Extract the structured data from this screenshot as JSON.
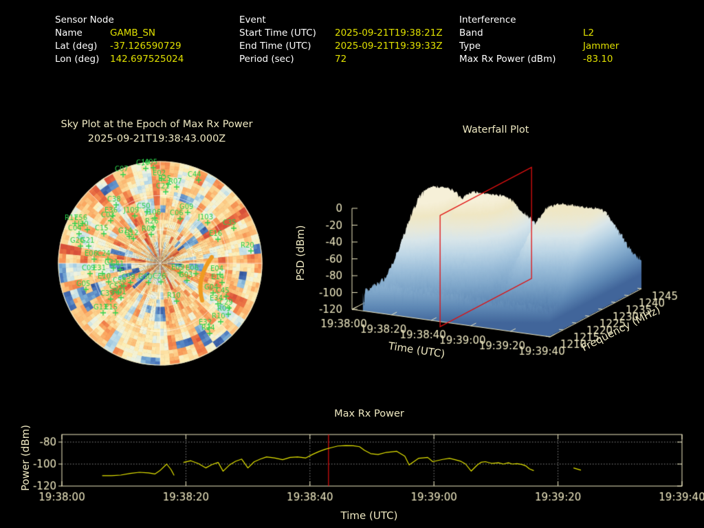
{
  "colors": {
    "background": "#000000",
    "label_white": "#ffffff",
    "value_yellow": "#e0e000",
    "cream": "#efe9c2",
    "grid_gray": "#909090",
    "green": "#2bd14b",
    "red": "#e01010",
    "line_yellow": "#e6e600",
    "orange": "#ef9b20"
  },
  "header": {
    "sensor": {
      "title": "Sensor Node",
      "rows": [
        {
          "label": "Name",
          "value": "GAMB_SN"
        },
        {
          "label": "Lat (deg)",
          "value": "-37.126590729"
        },
        {
          "label": "Lon (deg)",
          "value": "142.697525024"
        }
      ]
    },
    "event": {
      "title": "Event",
      "rows": [
        {
          "label": "Start Time (UTC)",
          "value": "2025-09-21T19:38:21Z"
        },
        {
          "label": "End Time (UTC)",
          "value": "2025-09-21T19:39:33Z"
        },
        {
          "label": "Period (sec)",
          "value": "72"
        }
      ]
    },
    "interference": {
      "title": "Interference",
      "rows": [
        {
          "label": "Band",
          "value": "L2"
        },
        {
          "label": "Type",
          "value": "Jammer"
        },
        {
          "label": "Max Rx Power (dBm)",
          "value": "-83.10"
        }
      ]
    }
  },
  "chart_data": [
    {
      "type": "heatmap",
      "subtype": "polar-sky-plot",
      "title": "Sky Plot at the Epoch of Max Rx Power",
      "subtitle": "2025-09-21T19:38:43.000Z",
      "palette": "red-yellow-blue interference intensity, mostly orange with scattered blue cells",
      "rings": 3,
      "spokes": 8,
      "marker_color": "#2bd14b",
      "track_color": "#ef9b20",
      "satellites": [
        [
          "C07",
          167,
          240
        ],
        [
          "C10",
          198,
          231
        ],
        [
          "J405",
          207,
          230
        ],
        [
          "E02",
          222,
          246
        ],
        [
          "E25",
          230,
          254
        ],
        [
          "R07",
          245,
          258
        ],
        [
          "C21",
          227,
          265
        ],
        [
          "C44",
          273,
          248
        ],
        [
          "C38",
          156,
          284
        ],
        [
          "C50",
          199,
          294
        ],
        [
          "G09",
          261,
          295
        ],
        [
          "J103",
          288,
          310
        ],
        [
          "C35",
          324,
          318
        ],
        [
          "E16",
          304,
          334
        ],
        [
          "R20",
          350,
          351
        ],
        [
          "E36",
          152,
          300
        ],
        [
          "C03",
          147,
          307
        ],
        [
          "J109",
          180,
          300
        ],
        [
          "J106",
          212,
          303
        ],
        [
          "C06",
          247,
          304
        ],
        [
          "R26",
          211,
          316
        ],
        [
          "R08",
          206,
          327
        ],
        [
          "G14",
          172,
          330
        ],
        [
          "G12",
          181,
          333
        ],
        [
          "R17",
          94,
          311
        ],
        [
          "E56",
          108,
          311
        ],
        [
          "J20",
          113,
          320
        ],
        [
          "C04",
          99,
          326
        ],
        [
          "C15",
          138,
          326
        ],
        [
          "G20",
          102,
          344
        ],
        [
          "G21",
          117,
          344
        ],
        [
          "E06",
          123,
          363
        ],
        [
          "C24",
          141,
          363
        ],
        [
          "G11",
          152,
          376
        ],
        [
          "G41",
          160,
          378
        ],
        [
          "C09",
          119,
          384
        ],
        [
          "E31",
          135,
          384
        ],
        [
          "E10",
          142,
          396
        ],
        [
          "C59",
          177,
          397
        ],
        [
          "G30",
          201,
          397
        ],
        [
          "C26",
          222,
          396
        ],
        [
          "G05",
          111,
          407
        ],
        [
          "C58",
          164,
          402
        ],
        [
          "C53",
          159,
          411
        ],
        [
          "C33",
          146,
          421
        ],
        [
          "R01",
          164,
          419
        ],
        [
          "G13",
          136,
          441
        ],
        [
          "E15",
          152,
          441
        ],
        [
          "E09",
          249,
          383
        ],
        [
          "E06",
          270,
          384
        ],
        [
          "G03",
          260,
          394
        ],
        [
          "E04",
          306,
          385
        ],
        [
          "E14",
          307,
          397
        ],
        [
          "G04",
          297,
          412
        ],
        [
          "C45",
          314,
          417
        ],
        [
          "E34",
          305,
          428
        ],
        [
          "C29",
          319,
          434
        ],
        [
          "R09",
          316,
          443
        ],
        [
          "R10",
          308,
          454
        ],
        [
          "E32",
          289,
          463
        ],
        [
          "R24",
          293,
          471
        ],
        [
          "R10",
          243,
          424
        ]
      ]
    },
    {
      "type": "area",
      "subtype": "3d-waterfall-surface",
      "title": "Waterfall Plot",
      "xlabel": "Time (UTC)",
      "ylabel": "Frequency (MHz)",
      "zlabel": "PSD (dBm)",
      "x_ticks": [
        "19:38:00",
        "19:38:20",
        "19:38:40",
        "19:39:00",
        "19:39:20",
        "19:39:40"
      ],
      "x_tick_seconds": [
        0,
        20,
        40,
        60,
        80,
        100
      ],
      "y_ticks": [
        1210,
        1215,
        1220,
        1225,
        1230,
        1235,
        1240,
        1245
      ],
      "z_ticks": [
        0,
        -20,
        -40,
        -60,
        -80,
        -100,
        -120
      ],
      "freq_range_mhz": [
        1210,
        1245
      ],
      "z_range_dbm": [
        -120,
        0
      ],
      "epoch_slice_time": "19:38:43",
      "epoch_t_sec": 44.5,
      "surface_start_sec": 5.5,
      "dip_times_sec": [
        29,
        56,
        66
      ]
    },
    {
      "type": "line",
      "title": "Max Rx Power",
      "xlabel": "Time (UTC)",
      "ylabel": "Power (dBm)",
      "x_ticks": [
        "19:38:00",
        "19:38:20",
        "19:38:40",
        "19:39:00",
        "19:39:20",
        "19:39:40"
      ],
      "x_tick_seconds": [
        0,
        20,
        40,
        60,
        80,
        100
      ],
      "y_ticks": [
        -80,
        -100,
        -120
      ],
      "y_range": [
        -73.1,
        -120
      ],
      "epoch_t_sec": 43,
      "peak_dbm": -83.1,
      "segments": [
        [
          [
            6.5,
            -110.5
          ],
          [
            8,
            -110.5
          ],
          [
            9.5,
            -110
          ],
          [
            11,
            -108.5
          ],
          [
            12.5,
            -107.5
          ],
          [
            14,
            -108
          ],
          [
            15,
            -109
          ],
          [
            15.8,
            -106
          ],
          [
            16.9,
            -100
          ],
          [
            17.6,
            -105
          ],
          [
            18.1,
            -110.3
          ]
        ],
        [
          [
            19.6,
            -98.5
          ],
          [
            20.8,
            -97
          ],
          [
            22,
            -99.5
          ],
          [
            23.2,
            -103.5
          ],
          [
            24.2,
            -100.5
          ],
          [
            25.2,
            -98.5
          ],
          [
            26,
            -106.5
          ],
          [
            27,
            -101
          ],
          [
            28,
            -97.5
          ],
          [
            29,
            -95.5
          ],
          [
            30,
            -103.5
          ],
          [
            31,
            -98
          ],
          [
            32,
            -95.5
          ],
          [
            33,
            -93.5
          ],
          [
            34.3,
            -94.5
          ],
          [
            35.6,
            -96
          ],
          [
            36.8,
            -94
          ],
          [
            38,
            -93.5
          ],
          [
            39.3,
            -94.5
          ],
          [
            40.5,
            -91
          ],
          [
            41.5,
            -88.5
          ],
          [
            42.5,
            -86.5
          ],
          [
            43.5,
            -85
          ],
          [
            44.5,
            -83.6
          ],
          [
            45.8,
            -83.2
          ],
          [
            47,
            -83.4
          ],
          [
            48,
            -84.2
          ],
          [
            48.8,
            -87.5
          ],
          [
            49.8,
            -90.5
          ],
          [
            51,
            -91.3
          ],
          [
            52.3,
            -89.4
          ],
          [
            54,
            -88.4
          ],
          [
            55.3,
            -92.8
          ],
          [
            56,
            -100.8
          ],
          [
            57.5,
            -94.8
          ],
          [
            59,
            -94
          ],
          [
            59.8,
            -97.8
          ],
          [
            61.4,
            -95.8
          ],
          [
            62.5,
            -94.8
          ],
          [
            63.4,
            -96
          ],
          [
            64.3,
            -97.4
          ],
          [
            65.1,
            -100
          ],
          [
            66,
            -106.4
          ],
          [
            67,
            -100.8
          ],
          [
            67.6,
            -98.4
          ],
          [
            68.3,
            -97.8
          ],
          [
            69.3,
            -99.4
          ],
          [
            70.4,
            -98.8
          ],
          [
            71.2,
            -100
          ],
          [
            72,
            -98.8
          ],
          [
            72.6,
            -100
          ],
          [
            73.4,
            -99.6
          ],
          [
            74.2,
            -100.4
          ],
          [
            74.8,
            -101.6
          ],
          [
            75.4,
            -104.4
          ],
          [
            76.1,
            -106
          ]
        ],
        [
          [
            82.5,
            -103.5
          ],
          [
            83.7,
            -105.5
          ]
        ]
      ]
    }
  ]
}
